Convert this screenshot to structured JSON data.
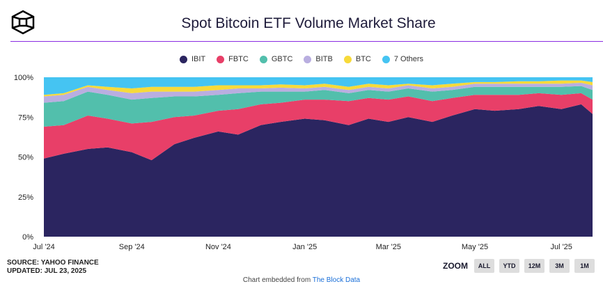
{
  "title": "Spot Bitcoin ETF Volume Market Share",
  "source": "SOURCE: YAHOO FINANCE",
  "updated": "UPDATED: JUL 23, 2025",
  "zoom": {
    "label": "ZOOM",
    "buttons": [
      "ALL",
      "YTD",
      "12M",
      "3M",
      "1M"
    ]
  },
  "embed": {
    "text": "Chart embedded from ",
    "link": "The Block Data"
  },
  "chart_data": {
    "type": "area",
    "stacked": true,
    "normalized": true,
    "title": "Spot Bitcoin ETF Volume Market Share",
    "ylim": [
      0,
      100
    ],
    "y_ticks": [
      "0%",
      "25%",
      "50%",
      "75%",
      "100%"
    ],
    "x_ticks": [
      {
        "date": "2024-07-01",
        "label": "Jul '24"
      },
      {
        "date": "2024-09-01",
        "label": "Sep '24"
      },
      {
        "date": "2024-11-01",
        "label": "Nov '24"
      },
      {
        "date": "2025-01-01",
        "label": "Jan '25"
      },
      {
        "date": "2025-03-01",
        "label": "Mar '25"
      },
      {
        "date": "2025-05-01",
        "label": "May '25"
      },
      {
        "date": "2025-07-01",
        "label": "Jul '25"
      }
    ],
    "xlim": [
      "2024-07-01",
      "2025-07-23"
    ],
    "legend_position": "top-center",
    "grid": false,
    "x": [
      "2024-07-01",
      "2024-07-15",
      "2024-08-01",
      "2024-08-15",
      "2024-09-01",
      "2024-09-15",
      "2024-10-01",
      "2024-10-15",
      "2024-11-01",
      "2024-11-15",
      "2024-12-01",
      "2024-12-15",
      "2025-01-01",
      "2025-01-15",
      "2025-02-01",
      "2025-02-15",
      "2025-03-01",
      "2025-03-15",
      "2025-04-01",
      "2025-04-15",
      "2025-05-01",
      "2025-05-15",
      "2025-06-01",
      "2025-06-15",
      "2025-07-01",
      "2025-07-15",
      "2025-07-23"
    ],
    "series": [
      {
        "name": "IBIT",
        "color": "#2b2560",
        "values": [
          49,
          52,
          55,
          56,
          53,
          48,
          58,
          62,
          66,
          64,
          70,
          72,
          74,
          73,
          70,
          74,
          72,
          75,
          72,
          76,
          80,
          79,
          80,
          82,
          80,
          83,
          77
        ]
      },
      {
        "name": "FBTC",
        "color": "#e83f68",
        "values": [
          20,
          18,
          21,
          18,
          18,
          24,
          17,
          14,
          13,
          16,
          13,
          12,
          12,
          13,
          15,
          13,
          14,
          13,
          13,
          11,
          9,
          10,
          9,
          8,
          9,
          7,
          9
        ]
      },
      {
        "name": "GBTC",
        "color": "#52bfac",
        "values": [
          15,
          15,
          15,
          15,
          15,
          15,
          13,
          12,
          10,
          10,
          8,
          7,
          5,
          6,
          5,
          5,
          5,
          5,
          6,
          5,
          5,
          5,
          5,
          4,
          5,
          4.5,
          6
        ]
      },
      {
        "name": "BITB",
        "color": "#b9aee0",
        "values": [
          4,
          4,
          3,
          3,
          4,
          4,
          3,
          3,
          3,
          3,
          2,
          2.5,
          2,
          2,
          2,
          2,
          2,
          2,
          2,
          2,
          2,
          2,
          2,
          2,
          2,
          2,
          3
        ]
      },
      {
        "name": "BTC",
        "color": "#f7da3a",
        "values": [
          1,
          1,
          1,
          2,
          3,
          3,
          3,
          3,
          3,
          2,
          2,
          2,
          2,
          2,
          2,
          2,
          2,
          1,
          2,
          2,
          1,
          1,
          1.5,
          1.5,
          2,
          1.5,
          2
        ]
      },
      {
        "name": "7 Others",
        "color": "#45c4f2",
        "values": [
          11,
          10,
          5,
          6,
          7,
          6,
          6,
          6,
          5,
          5,
          5,
          4.5,
          5,
          4,
          6,
          4,
          5,
          4,
          5,
          4,
          3,
          3,
          2.5,
          2.5,
          2,
          2,
          3
        ]
      }
    ]
  }
}
